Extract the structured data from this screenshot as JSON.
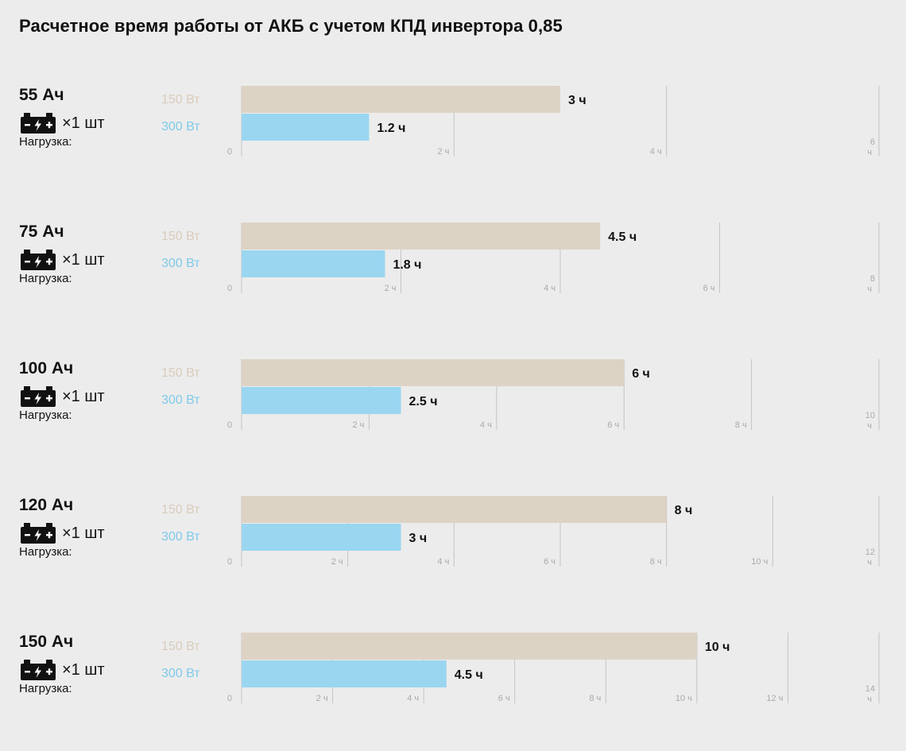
{
  "title": "Расчетное время работы от АКБ с учетом КПД инвертора 0,85",
  "colors": {
    "series_150": "#ddd3c5",
    "series_300": "#9ad6f0",
    "label_150": "#d9ccbb",
    "label_300": "#7fcaea",
    "gridline": "#c4c4c4",
    "tick_text": "#aaaaaa",
    "battery_icon": "#111111"
  },
  "icons": {
    "battery": "battery-icon"
  },
  "chart_data": [
    {
      "type": "bar",
      "capacity": "55 Ач",
      "count": "×1 шт",
      "load_label": "Нагрузка:",
      "categories": [
        "150 Вт",
        "300 Вт"
      ],
      "values": [
        3,
        1.2
      ],
      "value_labels": [
        "3 ч",
        "1.2 ч"
      ],
      "xlim": [
        0,
        6
      ],
      "ticks": [
        0,
        2,
        4,
        6
      ],
      "tick_labels": [
        "0",
        "2 ч",
        "4 ч",
        "6 ч"
      ]
    },
    {
      "type": "bar",
      "capacity": "75 Ач",
      "count": "×1 шт",
      "load_label": "Нагрузка:",
      "categories": [
        "150 Вт",
        "300 Вт"
      ],
      "values": [
        4.5,
        1.8
      ],
      "value_labels": [
        "4.5 ч",
        "1.8 ч"
      ],
      "xlim": [
        0,
        8
      ],
      "ticks": [
        0,
        2,
        4,
        6,
        8
      ],
      "tick_labels": [
        "0",
        "2 ч",
        "4 ч",
        "6 ч",
        "8 ч"
      ]
    },
    {
      "type": "bar",
      "capacity": "100 Ач",
      "count": "×1 шт",
      "load_label": "Нагрузка:",
      "categories": [
        "150 Вт",
        "300 Вт"
      ],
      "values": [
        6,
        2.5
      ],
      "value_labels": [
        "6 ч",
        "2.5 ч"
      ],
      "xlim": [
        0,
        10
      ],
      "ticks": [
        0,
        2,
        4,
        6,
        8,
        10
      ],
      "tick_labels": [
        "0",
        "2 ч",
        "4 ч",
        "6 ч",
        "8 ч",
        "10 ч"
      ]
    },
    {
      "type": "bar",
      "capacity": "120 Ач",
      "count": "×1 шт",
      "load_label": "Нагрузка:",
      "categories": [
        "150 Вт",
        "300 Вт"
      ],
      "values": [
        8,
        3
      ],
      "value_labels": [
        "8 ч",
        "3 ч"
      ],
      "xlim": [
        0,
        12
      ],
      "ticks": [
        0,
        2,
        4,
        6,
        8,
        10,
        12
      ],
      "tick_labels": [
        "0",
        "2 ч",
        "4 ч",
        "6 ч",
        "8 ч",
        "10 ч",
        "12 ч"
      ]
    },
    {
      "type": "bar",
      "capacity": "150 Ач",
      "count": "×1 шт",
      "load_label": "Нагрузка:",
      "categories": [
        "150 Вт",
        "300 Вт"
      ],
      "values": [
        10,
        4.5
      ],
      "value_labels": [
        "10 ч",
        "4.5 ч"
      ],
      "xlim": [
        0,
        14
      ],
      "ticks": [
        0,
        2,
        4,
        6,
        8,
        10,
        12,
        14
      ],
      "tick_labels": [
        "0",
        "2 ч",
        "4 ч",
        "6 ч",
        "8 ч",
        "10 ч",
        "12 ч",
        "14 ч"
      ]
    }
  ]
}
